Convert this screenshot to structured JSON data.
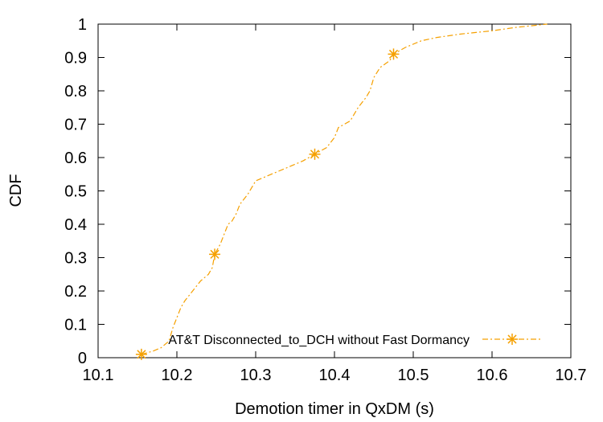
{
  "chart_data": {
    "type": "line",
    "title": "",
    "xlabel": "Demotion timer in QxDM (s)",
    "ylabel": "CDF",
    "xlim": [
      10.1,
      10.7
    ],
    "ylim": [
      0,
      1
    ],
    "x_ticks": [
      "10.1",
      "10.2",
      "10.3",
      "10.4",
      "10.5",
      "10.6",
      "10.7"
    ],
    "y_ticks": [
      "0",
      "0.1",
      "0.2",
      "0.3",
      "0.4",
      "0.5",
      "0.6",
      "0.7",
      "0.8",
      "0.9",
      "1"
    ],
    "grid": false,
    "legend_position": "bottom-right",
    "series": [
      {
        "name": "AT&T Disconnected_to_DCH without Fast Dormancy",
        "color": "#f5a000",
        "line_style": "dash-dot",
        "marker": "asterisk",
        "points": [
          [
            10.155,
            0.01
          ],
          [
            10.17,
            0.02
          ],
          [
            10.18,
            0.03
          ],
          [
            10.19,
            0.05
          ],
          [
            10.195,
            0.09
          ],
          [
            10.2,
            0.12
          ],
          [
            10.205,
            0.15
          ],
          [
            10.21,
            0.17
          ],
          [
            10.22,
            0.2
          ],
          [
            10.23,
            0.23
          ],
          [
            10.24,
            0.25
          ],
          [
            10.245,
            0.27
          ],
          [
            10.248,
            0.31
          ],
          [
            10.255,
            0.34
          ],
          [
            10.26,
            0.37
          ],
          [
            10.265,
            0.4
          ],
          [
            10.27,
            0.41
          ],
          [
            10.275,
            0.43
          ],
          [
            10.28,
            0.46
          ],
          [
            10.29,
            0.49
          ],
          [
            10.3,
            0.53
          ],
          [
            10.32,
            0.55
          ],
          [
            10.34,
            0.57
          ],
          [
            10.36,
            0.59
          ],
          [
            10.375,
            0.61
          ],
          [
            10.39,
            0.63
          ],
          [
            10.4,
            0.66
          ],
          [
            10.405,
            0.69
          ],
          [
            10.42,
            0.71
          ],
          [
            10.43,
            0.75
          ],
          [
            10.44,
            0.78
          ],
          [
            10.445,
            0.8
          ],
          [
            10.45,
            0.84
          ],
          [
            10.458,
            0.87
          ],
          [
            10.47,
            0.89
          ],
          [
            10.475,
            0.91
          ],
          [
            10.49,
            0.93
          ],
          [
            10.51,
            0.95
          ],
          [
            10.53,
            0.96
          ],
          [
            10.56,
            0.97
          ],
          [
            10.6,
            0.98
          ],
          [
            10.63,
            0.99
          ],
          [
            10.67,
            1.0
          ]
        ],
        "marker_points": [
          [
            10.155,
            0.01
          ],
          [
            10.248,
            0.31
          ],
          [
            10.375,
            0.61
          ],
          [
            10.475,
            0.91
          ]
        ]
      }
    ]
  }
}
